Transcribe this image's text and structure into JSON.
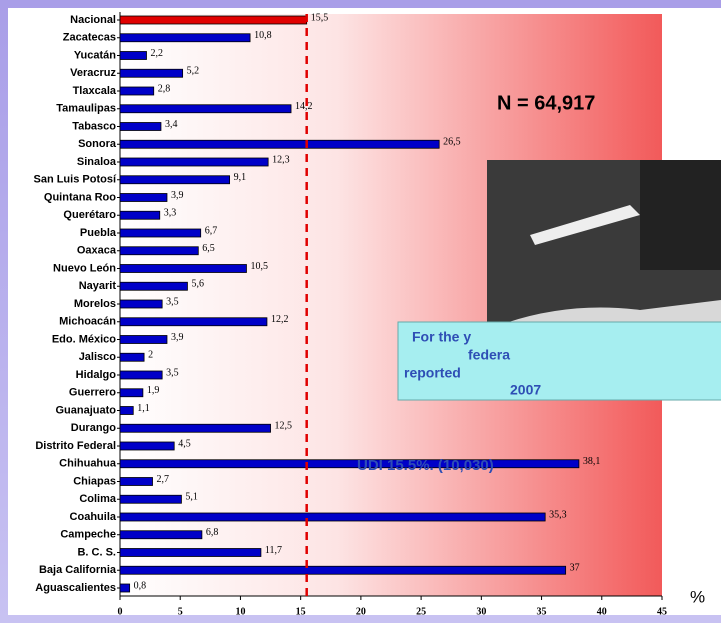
{
  "chart_data": {
    "type": "bar",
    "orientation": "horizontal",
    "categories": [
      "Nacional",
      "Zacatecas",
      "Yucatán",
      "Veracruz",
      "Tlaxcala",
      "Tamaulipas",
      "Tabasco",
      "Sonora",
      "Sinaloa",
      "San Luis Potosí",
      "Quintana  Roo",
      "Querétaro",
      "Puebla",
      "Oaxaca",
      "Nuevo León",
      "Nayarit",
      "Morelos",
      "Michoacán",
      "Edo. México",
      "Jalisco",
      "Hidalgo",
      "Guerrero",
      "Guanajuato",
      "Durango",
      "Distrito Federal",
      "Chihuahua",
      "Chiapas",
      "Colima",
      "Coahuila",
      "Campeche",
      "B. C. S.",
      "Baja California",
      "Aguascalientes"
    ],
    "values": [
      15.5,
      10.8,
      2.2,
      5.2,
      2.8,
      14.2,
      3.4,
      26.5,
      12.3,
      9.1,
      3.9,
      3.3,
      6.7,
      6.5,
      10.5,
      5.6,
      3.5,
      12.2,
      3.9,
      2,
      3.5,
      1.9,
      1.1,
      12.5,
      4.5,
      38.1,
      2.7,
      5.1,
      35.3,
      6.8,
      11.7,
      37,
      0.8
    ],
    "value_labels": [
      "15,5",
      "10,8",
      "2,2",
      "5,2",
      "2,8",
      "14,2",
      "3,4",
      "26,5",
      "12,3",
      "9,1",
      "3,9",
      "3,3",
      "6,7",
      "6,5",
      "10,5",
      "5,6",
      "3,5",
      "12,2",
      "3,9",
      "2",
      "3,5",
      "1,9",
      "1,1",
      "12,5",
      "4,5",
      "38,1",
      "2,7",
      "5,1",
      "35,3",
      "6,8",
      "11,7",
      "37",
      "0,8"
    ],
    "colors": [
      "#e00000",
      "#0000c8",
      "#0000c8",
      "#0000c8",
      "#0000c8",
      "#0000c8",
      "#0000c8",
      "#0000c8",
      "#0000c8",
      "#0000c8",
      "#0000c8",
      "#0000c8",
      "#0000c8",
      "#0000c8",
      "#0000c8",
      "#0000c8",
      "#0000c8",
      "#0000c8",
      "#0000c8",
      "#0000c8",
      "#0000c8",
      "#0000c8",
      "#0000c8",
      "#0000c8",
      "#0000c8",
      "#0000c8",
      "#0000c8",
      "#0000c8",
      "#0000c8",
      "#0000c8",
      "#0000c8",
      "#0000c8",
      "#0000c8"
    ],
    "xlim": [
      0,
      45
    ],
    "xticks": [
      0,
      5,
      10,
      15,
      20,
      25,
      30,
      35,
      40,
      45
    ],
    "reference_line_color": "#e00000",
    "annotations": {
      "n_label": "N = 64,917",
      "udi_label": "UDI 15.5%. (10,030)",
      "textbox_lines": [
        "For the y",
        "federa",
        "reported",
        "2007"
      ],
      "unit_label": "%"
    }
  }
}
